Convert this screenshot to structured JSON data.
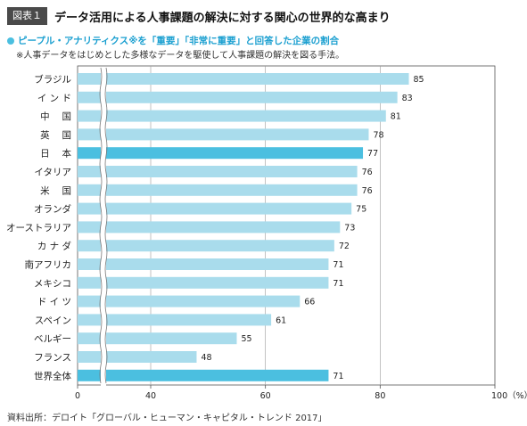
{
  "header": {
    "fig_label": "図表１",
    "title": "データ活用による人事課題の解決に対する関心の世界的な高まり"
  },
  "subtitle": "ピープル・アナリティクス※を「重要」「非常に重要」と回答した企業の割合",
  "note": "※人事データをはじめとした多様なデータを駆使して人事課題の解決を図る手法。",
  "source": "資料出所：デロイト「グローバル・ヒューマン・キャピタル・トレンド 2017」",
  "colors": {
    "bar": "#a9dcec",
    "highlight": "#4bbfe0",
    "highlight_text": "#1a9fd0"
  },
  "chart_data": {
    "type": "bar",
    "orientation": "horizontal",
    "categories": [
      "ブラジル",
      "イ ン ド",
      "中　 国",
      "英　 国",
      "日　 本",
      "イタリア",
      "米　 国",
      "オランダ",
      "オーストラリア",
      "カ ナ ダ",
      "南アフリカ",
      "メキシコ",
      "ド イ ツ",
      "スペイン",
      "ベルギー",
      "フランス",
      "世界全体"
    ],
    "values": [
      85,
      83,
      81,
      78,
      77,
      76,
      76,
      75,
      73,
      72,
      71,
      71,
      66,
      61,
      55,
      48,
      71
    ],
    "highlighted": [
      "日　 本",
      "世界全体"
    ],
    "x_ticks": [
      "0",
      "40",
      "60",
      "80",
      "100（%）"
    ],
    "x_tick_values": [
      0,
      40,
      60,
      80,
      100
    ],
    "axis_break": "between 0 and 40",
    "xlim": [
      0,
      100
    ]
  }
}
